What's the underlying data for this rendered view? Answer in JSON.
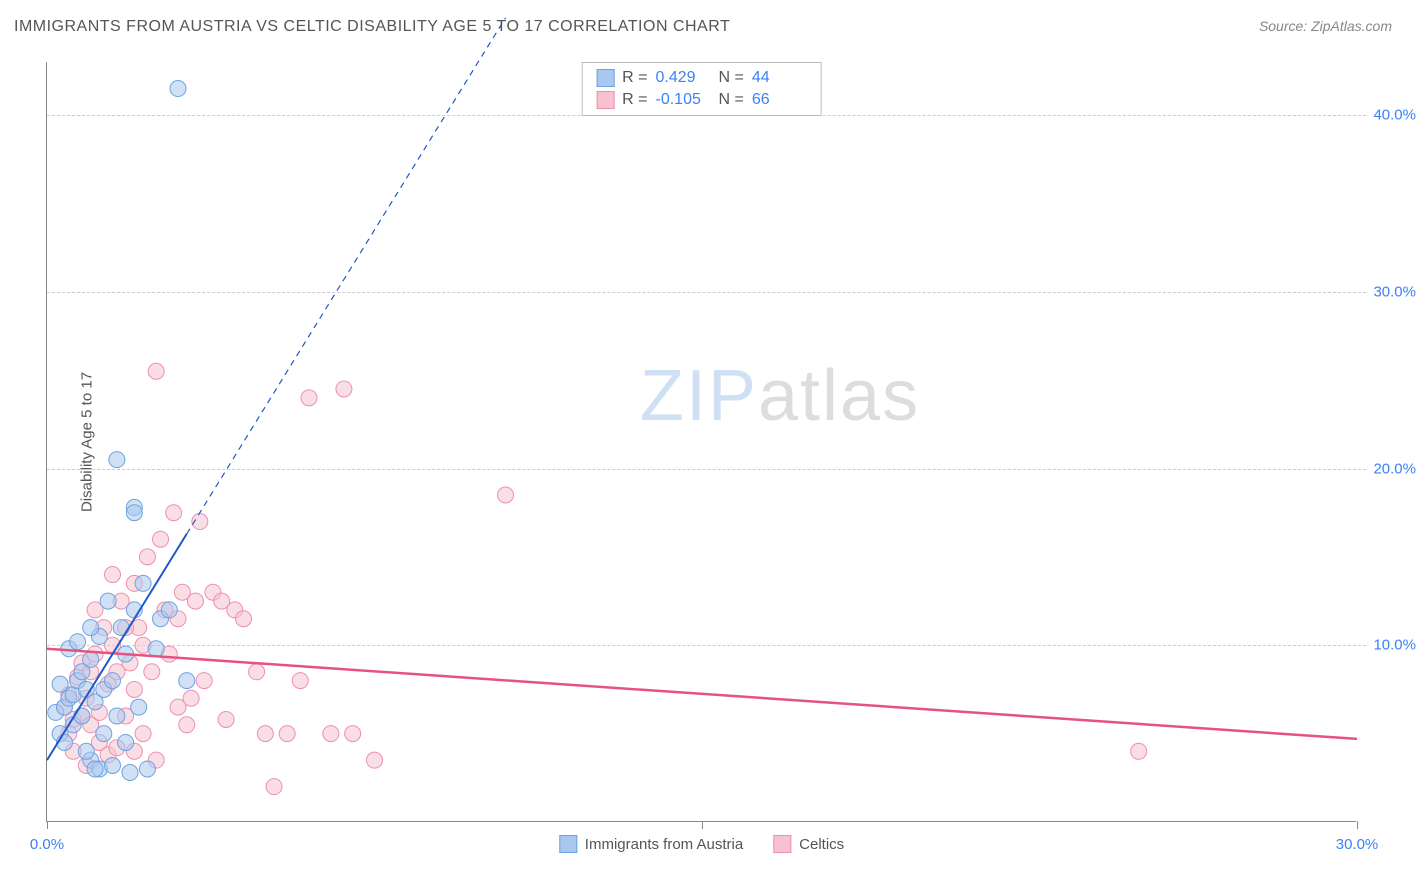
{
  "title": "IMMIGRANTS FROM AUSTRIA VS CELTIC DISABILITY AGE 5 TO 17 CORRELATION CHART",
  "source": "Source: ZipAtlas.com",
  "watermark": {
    "part1": "ZIP",
    "part2": "atlas"
  },
  "y_axis_title": "Disability Age 5 to 17",
  "chart": {
    "type": "scatter",
    "xlim": [
      0,
      30
    ],
    "ylim": [
      0,
      43
    ],
    "x_ticks": [
      0,
      15,
      30
    ],
    "x_tick_labels": [
      "0.0%",
      "",
      "30.0%"
    ],
    "y_ticks": [
      10,
      20,
      30,
      40
    ],
    "y_tick_labels": [
      "10.0%",
      "20.0%",
      "30.0%",
      "40.0%"
    ],
    "x_label_color": "#3b82f6",
    "y_label_color": "#3b82f6",
    "grid_color": "#cccccc",
    "background_color": "#ffffff",
    "series": [
      {
        "key": "austria",
        "name": "Immigrants from Austria",
        "color_fill": "#a9c8ef",
        "color_stroke": "#6da3e0",
        "marker_radius": 8,
        "fill_opacity": 0.55,
        "trend_color": "#1f58c7",
        "trend_width": 2,
        "trend_solid_end_x": 3.2,
        "trend_dash_end_x": 10.5,
        "trend_y_at_x0": 3.5,
        "trend_slope": 4.0,
        "R": "0.429",
        "N": "44",
        "points": [
          [
            0.2,
            6.2
          ],
          [
            0.3,
            5.0
          ],
          [
            0.4,
            6.5
          ],
          [
            0.5,
            7.0
          ],
          [
            0.6,
            5.5
          ],
          [
            0.6,
            7.2
          ],
          [
            0.7,
            8.0
          ],
          [
            0.8,
            6.0
          ],
          [
            0.8,
            8.5
          ],
          [
            0.9,
            7.5
          ],
          [
            1.0,
            3.5
          ],
          [
            1.0,
            9.2
          ],
          [
            1.1,
            6.8
          ],
          [
            1.2,
            10.5
          ],
          [
            1.2,
            3.0
          ],
          [
            1.3,
            7.5
          ],
          [
            1.4,
            12.5
          ],
          [
            1.5,
            8.0
          ],
          [
            1.5,
            3.2
          ],
          [
            1.6,
            20.5
          ],
          [
            1.7,
            11.0
          ],
          [
            1.8,
            9.5
          ],
          [
            1.9,
            2.8
          ],
          [
            2.0,
            17.8
          ],
          [
            2.0,
            12.0
          ],
          [
            2.0,
            17.5
          ],
          [
            2.1,
            6.5
          ],
          [
            2.2,
            13.5
          ],
          [
            2.3,
            3.0
          ],
          [
            2.5,
            9.8
          ],
          [
            2.6,
            11.5
          ],
          [
            2.8,
            12.0
          ],
          [
            3.0,
            41.5
          ],
          [
            3.2,
            8.0
          ],
          [
            1.1,
            3.0
          ],
          [
            0.5,
            9.8
          ],
          [
            0.7,
            10.2
          ],
          [
            1.3,
            5.0
          ],
          [
            0.4,
            4.5
          ],
          [
            0.9,
            4.0
          ],
          [
            1.6,
            6.0
          ],
          [
            1.8,
            4.5
          ],
          [
            0.3,
            7.8
          ],
          [
            1.0,
            11.0
          ]
        ]
      },
      {
        "key": "celtics",
        "name": "Celtics",
        "color_fill": "#f6c2d0",
        "color_stroke": "#ef8fb0",
        "marker_radius": 8,
        "fill_opacity": 0.55,
        "trend_color": "#e5537e",
        "trend_width": 2.5,
        "trend_solid_end_x": 30,
        "trend_y_at_x0": 9.8,
        "trend_slope": -0.17,
        "R": "-0.105",
        "N": "66",
        "points": [
          [
            0.4,
            6.5
          ],
          [
            0.5,
            7.2
          ],
          [
            0.6,
            5.8
          ],
          [
            0.7,
            8.2
          ],
          [
            0.8,
            6.0
          ],
          [
            0.8,
            9.0
          ],
          [
            0.9,
            7.0
          ],
          [
            1.0,
            8.5
          ],
          [
            1.0,
            5.5
          ],
          [
            1.1,
            9.5
          ],
          [
            1.2,
            6.2
          ],
          [
            1.3,
            11.0
          ],
          [
            1.4,
            7.8
          ],
          [
            1.5,
            10.0
          ],
          [
            1.5,
            14.0
          ],
          [
            1.6,
            8.5
          ],
          [
            1.7,
            12.5
          ],
          [
            1.8,
            6.0
          ],
          [
            1.9,
            9.0
          ],
          [
            2.0,
            13.5
          ],
          [
            2.0,
            7.5
          ],
          [
            2.1,
            11.0
          ],
          [
            2.2,
            5.0
          ],
          [
            2.3,
            15.0
          ],
          [
            2.4,
            8.5
          ],
          [
            2.5,
            25.5
          ],
          [
            2.6,
            16.0
          ],
          [
            2.7,
            12.0
          ],
          [
            2.8,
            9.5
          ],
          [
            2.9,
            17.5
          ],
          [
            3.0,
            11.5
          ],
          [
            3.1,
            13.0
          ],
          [
            3.2,
            5.5
          ],
          [
            3.4,
            12.5
          ],
          [
            3.5,
            17.0
          ],
          [
            3.6,
            8.0
          ],
          [
            3.8,
            13.0
          ],
          [
            4.0,
            12.5
          ],
          [
            4.1,
            5.8
          ],
          [
            4.3,
            12.0
          ],
          [
            4.5,
            11.5
          ],
          [
            4.8,
            8.5
          ],
          [
            5.0,
            5.0
          ],
          [
            5.2,
            2.0
          ],
          [
            5.5,
            5.0
          ],
          [
            5.8,
            8.0
          ],
          [
            6.0,
            24.0
          ],
          [
            6.5,
            5.0
          ],
          [
            6.8,
            24.5
          ],
          [
            7.0,
            5.0
          ],
          [
            7.5,
            3.5
          ],
          [
            10.5,
            18.5
          ],
          [
            25.0,
            4.0
          ],
          [
            1.2,
            4.5
          ],
          [
            0.6,
            4.0
          ],
          [
            1.4,
            3.8
          ],
          [
            2.0,
            4.0
          ],
          [
            2.5,
            3.5
          ],
          [
            0.9,
            3.2
          ],
          [
            1.6,
            4.2
          ],
          [
            3.0,
            6.5
          ],
          [
            3.3,
            7.0
          ],
          [
            1.1,
            12.0
          ],
          [
            1.8,
            11.0
          ],
          [
            0.5,
            5.0
          ],
          [
            2.2,
            10.0
          ]
        ]
      }
    ]
  },
  "legend_top": {
    "r_label": "R =",
    "n_label": "N ="
  }
}
